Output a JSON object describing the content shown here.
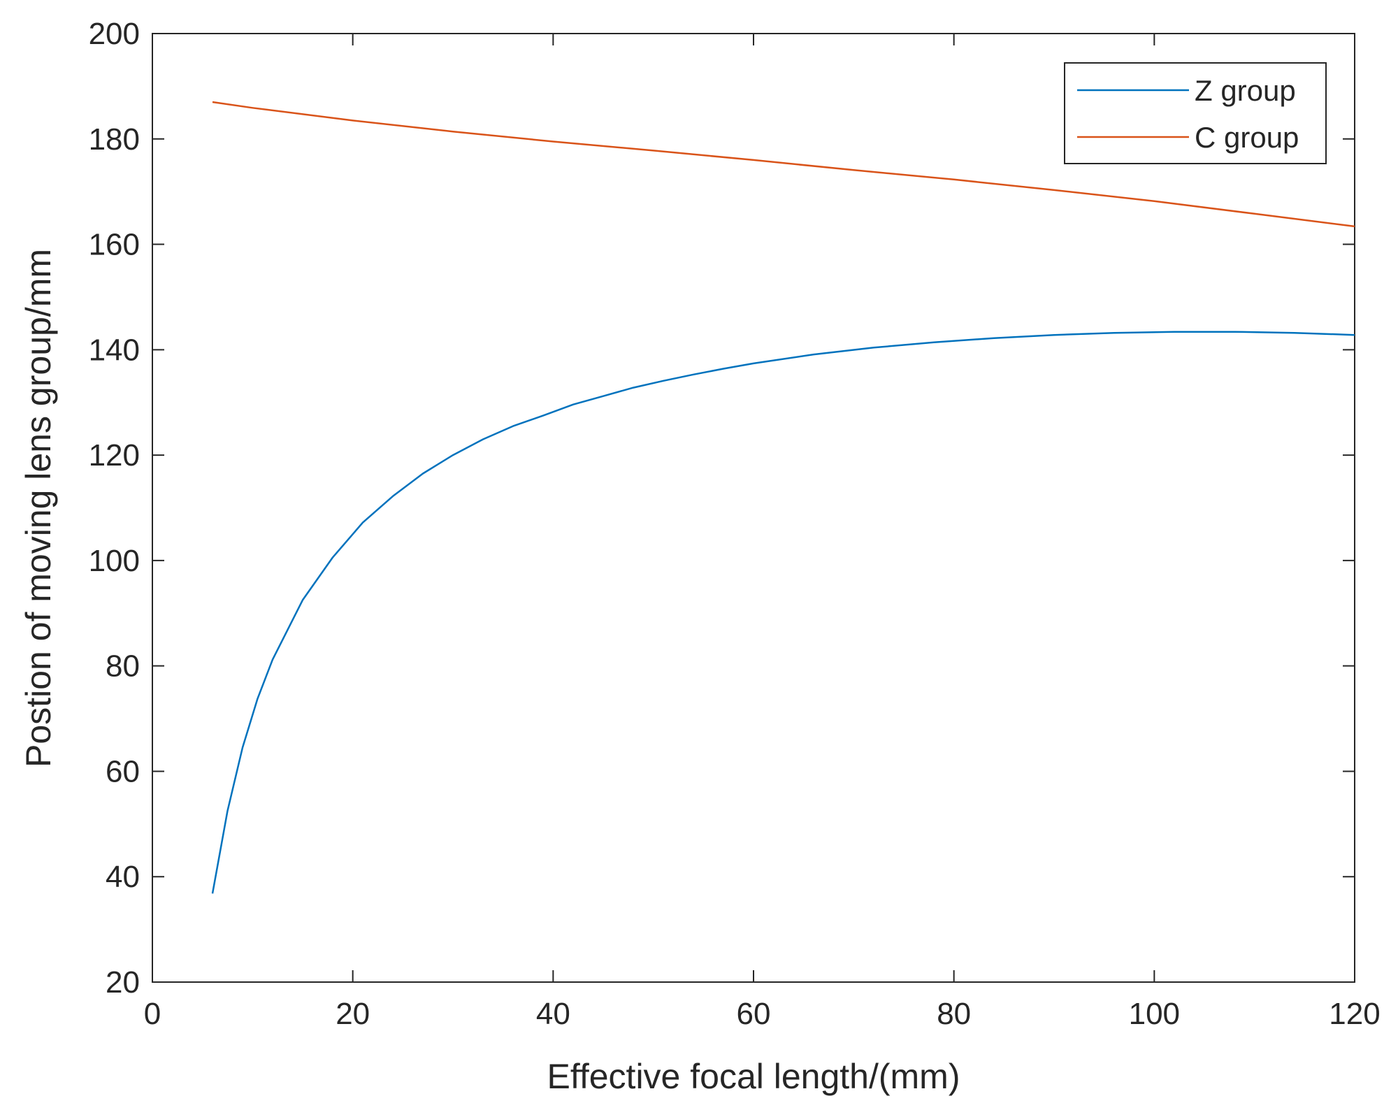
{
  "chart_data": {
    "type": "line",
    "title": "",
    "xlabel": "Effective focal length/(mm)",
    "ylabel": "Postion of moving lens group/mm",
    "xlim": [
      0,
      120
    ],
    "ylim": [
      20,
      200
    ],
    "xticks": [
      0,
      20,
      40,
      60,
      80,
      100,
      120
    ],
    "yticks": [
      20,
      40,
      60,
      80,
      100,
      120,
      140,
      160,
      180,
      200
    ],
    "grid": false,
    "legend": {
      "placement": "top-right"
    },
    "series": [
      {
        "name": "Z group",
        "color": "#0072BD",
        "x": [
          6,
          7.5,
          9,
          10.5,
          12,
          15,
          18,
          21,
          24,
          27,
          30,
          33,
          36,
          39,
          42,
          45,
          48,
          51,
          54,
          57,
          60,
          66,
          72,
          78,
          84,
          90,
          96,
          102,
          108,
          114,
          120
        ],
        "y": [
          36.8,
          52.5,
          64.5,
          73.8,
          81.2,
          92.5,
          100.6,
          107.2,
          112.2,
          116.5,
          120.0,
          123.0,
          125.5,
          127.5,
          129.6,
          131.2,
          132.8,
          134.1,
          135.3,
          136.4,
          137.4,
          139.1,
          140.4,
          141.4,
          142.2,
          142.8,
          143.2,
          143.4,
          143.4,
          143.2,
          142.8
        ]
      },
      {
        "name": "C group",
        "color": "#D95319",
        "x": [
          6,
          10,
          20,
          30,
          40,
          50,
          60,
          70,
          80,
          90,
          100,
          110,
          120
        ],
        "y": [
          187.0,
          185.9,
          183.5,
          181.4,
          179.5,
          177.8,
          176.0,
          174.1,
          172.3,
          170.3,
          168.2,
          165.8,
          163.4
        ]
      }
    ]
  }
}
